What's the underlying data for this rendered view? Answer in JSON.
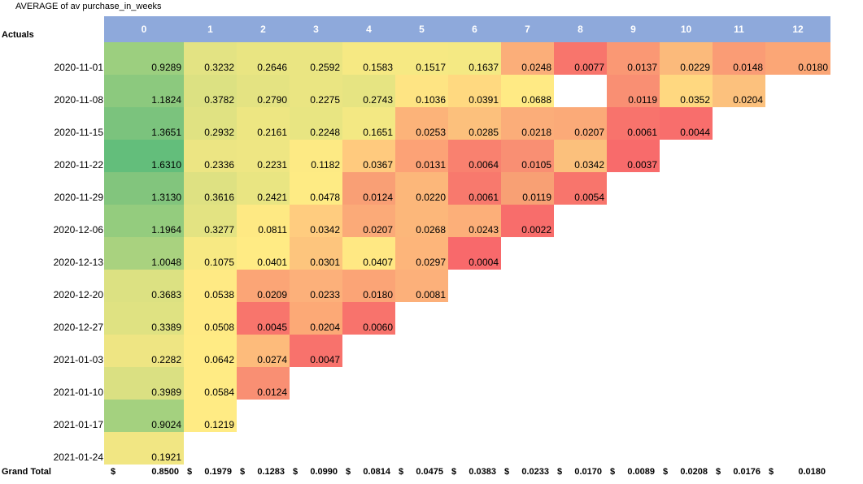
{
  "sheet": {
    "title": "AVERAGE of av purchase_in_weeks",
    "row_header": "Actuals",
    "columns": [
      "0",
      "1",
      "2",
      "3",
      "4",
      "5",
      "6",
      "7",
      "8",
      "9",
      "10",
      "11",
      "12"
    ],
    "rows": [
      {
        "label": "2020-11-01",
        "values": [
          "0.9289",
          "0.3232",
          "0.2646",
          "0.2592",
          "0.1583",
          "0.1517",
          "0.1637",
          "0.0248",
          "0.0077",
          "0.0137",
          "0.0229",
          "0.0148",
          "0.0180"
        ]
      },
      {
        "label": "2020-11-08",
        "values": [
          "1.1824",
          "0.3782",
          "0.2790",
          "0.2275",
          "0.2743",
          "0.1036",
          "0.0391",
          "0.0688",
          "",
          "0.0119",
          "0.0352",
          "0.0204"
        ]
      },
      {
        "label": "2020-11-15",
        "values": [
          "1.3651",
          "0.2932",
          "0.2161",
          "0.2248",
          "0.1651",
          "0.0253",
          "0.0285",
          "0.0218",
          "0.0207",
          "0.0061",
          "0.0044"
        ]
      },
      {
        "label": "2020-11-22",
        "values": [
          "1.6310",
          "0.2336",
          "0.2231",
          "0.1182",
          "0.0367",
          "0.0131",
          "0.0064",
          "0.0105",
          "0.0342",
          "0.0037"
        ]
      },
      {
        "label": "2020-11-29",
        "values": [
          "1.3130",
          "0.3616",
          "0.2421",
          "0.0478",
          "0.0124",
          "0.0220",
          "0.0061",
          "0.0119",
          "0.0054"
        ]
      },
      {
        "label": "2020-12-06",
        "values": [
          "1.1964",
          "0.3277",
          "0.0811",
          "0.0342",
          "0.0207",
          "0.0268",
          "0.0243",
          "0.0022"
        ]
      },
      {
        "label": "2020-12-13",
        "values": [
          "1.0048",
          "0.1075",
          "0.0401",
          "0.0301",
          "0.0407",
          "0.0297",
          "0.0004"
        ]
      },
      {
        "label": "2020-12-20",
        "values": [
          "0.3683",
          "0.0538",
          "0.0209",
          "0.0233",
          "0.0180",
          "0.0081"
        ]
      },
      {
        "label": "2020-12-27",
        "values": [
          "0.3389",
          "0.0508",
          "0.0045",
          "0.0204",
          "0.0060"
        ]
      },
      {
        "label": "2021-01-03",
        "values": [
          "0.2282",
          "0.0642",
          "0.0274",
          "0.0047"
        ]
      },
      {
        "label": "2021-01-10",
        "values": [
          "0.3989",
          "0.0584",
          "0.0124"
        ]
      },
      {
        "label": "2021-01-17",
        "values": [
          "0.9024",
          "0.1219"
        ]
      },
      {
        "label": "2021-01-24",
        "values": [
          "0.1921"
        ]
      }
    ],
    "grand_total": {
      "label": "Grand Total",
      "currency": "$",
      "values": [
        "0.8500",
        "0.1979",
        "0.1283",
        "0.0990",
        "0.0814",
        "0.0475",
        "0.0383",
        "0.0233",
        "0.0170",
        "0.0089",
        "0.0208",
        "0.0176",
        "0.0180"
      ]
    }
  },
  "colors": {
    "header_bg": "#8EA9DB",
    "scale_low": "#F8696B",
    "scale_mid": "#FFEB84",
    "scale_high": "#63BE7B"
  },
  "cell_colors": [
    [
      "#9CCF7F",
      "#E3E383",
      "#E9E582",
      "#EAE582",
      "#F6E983",
      "#F6E983",
      "#F4E983",
      "#FBAE79",
      "#F8756C",
      "#FA9874",
      "#FBBA7B",
      "#FA9C75",
      "#FBA676"
    ],
    [
      "#8CC97E",
      "#DCE182",
      "#E4E382",
      "#EAE582",
      "#E6E482",
      "#FEE483",
      "#FFD980",
      "#FFEA84",
      "",
      "#F98F73",
      "#FFD880",
      "#FCC17D"
    ],
    [
      "#7BC37D",
      "#E0E282",
      "#EDE682",
      "#E8E582",
      "#F3E883",
      "#FCB379",
      "#FCC07C",
      "#FBAD79",
      "#FBAA78",
      "#F8736C",
      "#F86E6C"
    ],
    [
      "#63BE7B",
      "#ECE583",
      "#EEE683",
      "#FDEA84",
      "#FFCA7E",
      "#FCA276",
      "#F9816F",
      "#F98F73",
      "#FBC07C",
      "#F86B6B"
    ],
    [
      "#82C57D",
      "#DEE182",
      "#E9E582",
      "#FEEB84",
      "#F99F75",
      "#FCB77A",
      "#F8796D",
      "#F8A074",
      "#F8756C"
    ],
    [
      "#94CC7E",
      "#E3E382",
      "#FEE983",
      "#FFCC7F",
      "#FBAA78",
      "#FCB77A",
      "#FCAF79",
      "#F86D6B"
    ],
    [
      "#A9D27F",
      "#F7E983",
      "#FFEB84",
      "#FDC57D",
      "#FFE883",
      "#FDB57A",
      "#F8696B"
    ],
    [
      "#DCE182",
      "#FFEA84",
      "#FBA576",
      "#FCB07A",
      "#FBA476",
      "#FCB07A"
    ],
    [
      "#DFE282",
      "#FFEA84",
      "#F8756C",
      "#FCA976",
      "#F8736C"
    ],
    [
      "#EEE583",
      "#FFEB84",
      "#FDBB7B",
      "#F8726C"
    ],
    [
      "#DAE082",
      "#FFEB84",
      "#F98F73"
    ],
    [
      "#A4D17F",
      "#FFEB84"
    ],
    [
      "#F1E683"
    ]
  ]
}
